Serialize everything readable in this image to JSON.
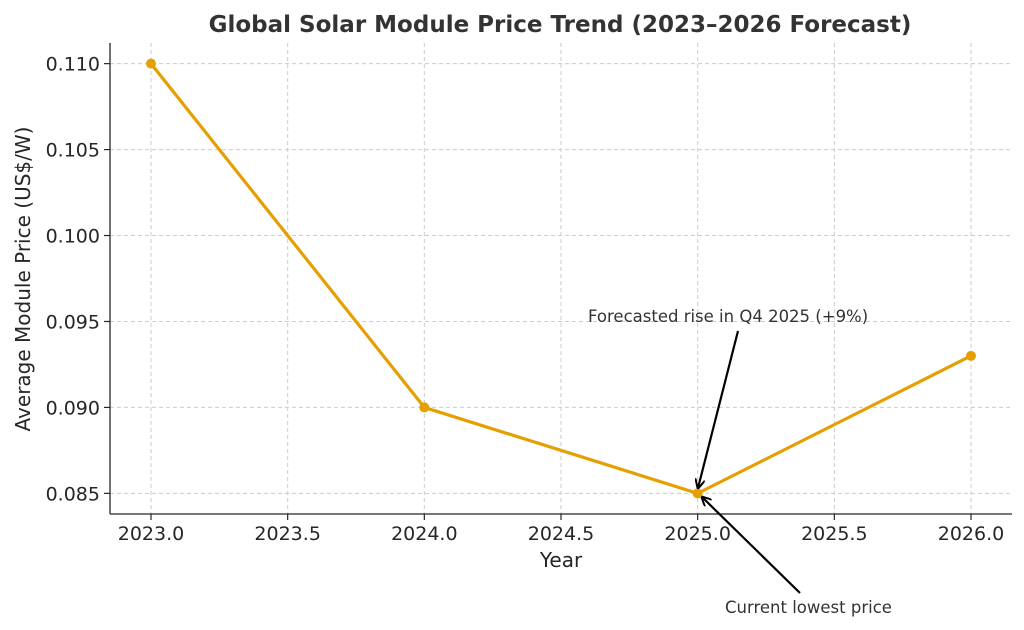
{
  "chart_data": {
    "type": "line",
    "title": "Global Solar Module Price Trend (2023–2026 Forecast)",
    "xlabel": "Year",
    "ylabel": "Average Module Price (US$/W)",
    "x": [
      2023,
      2024,
      2025,
      2026
    ],
    "values": [
      0.11,
      0.09,
      0.085,
      0.093
    ],
    "xlim": [
      2022.85,
      2026.15
    ],
    "ylim": [
      0.0838,
      0.1112
    ],
    "xticks": [
      "2023.0",
      "2023.5",
      "2024.0",
      "2024.5",
      "2025.0",
      "2025.5",
      "2026.0"
    ],
    "xtick_values": [
      2023,
      2023.5,
      2024,
      2024.5,
      2025,
      2025.5,
      2026
    ],
    "yticks": [
      "0.085",
      "0.090",
      "0.095",
      "0.100",
      "0.105",
      "0.110"
    ],
    "ytick_values": [
      0.085,
      0.09,
      0.095,
      0.1,
      0.105,
      0.11
    ],
    "grid": true,
    "line_color": "#E69F00",
    "annotations": [
      {
        "text": "Forecasted rise in Q4 2025 (+9%)",
        "x": 2025,
        "y": 0.085,
        "text_x": 2024.6,
        "text_y": 0.095
      },
      {
        "text": "Current lowest price",
        "x": 2025,
        "y": 0.085,
        "text_x": 2025.1,
        "text_y": 0.0815
      }
    ]
  }
}
